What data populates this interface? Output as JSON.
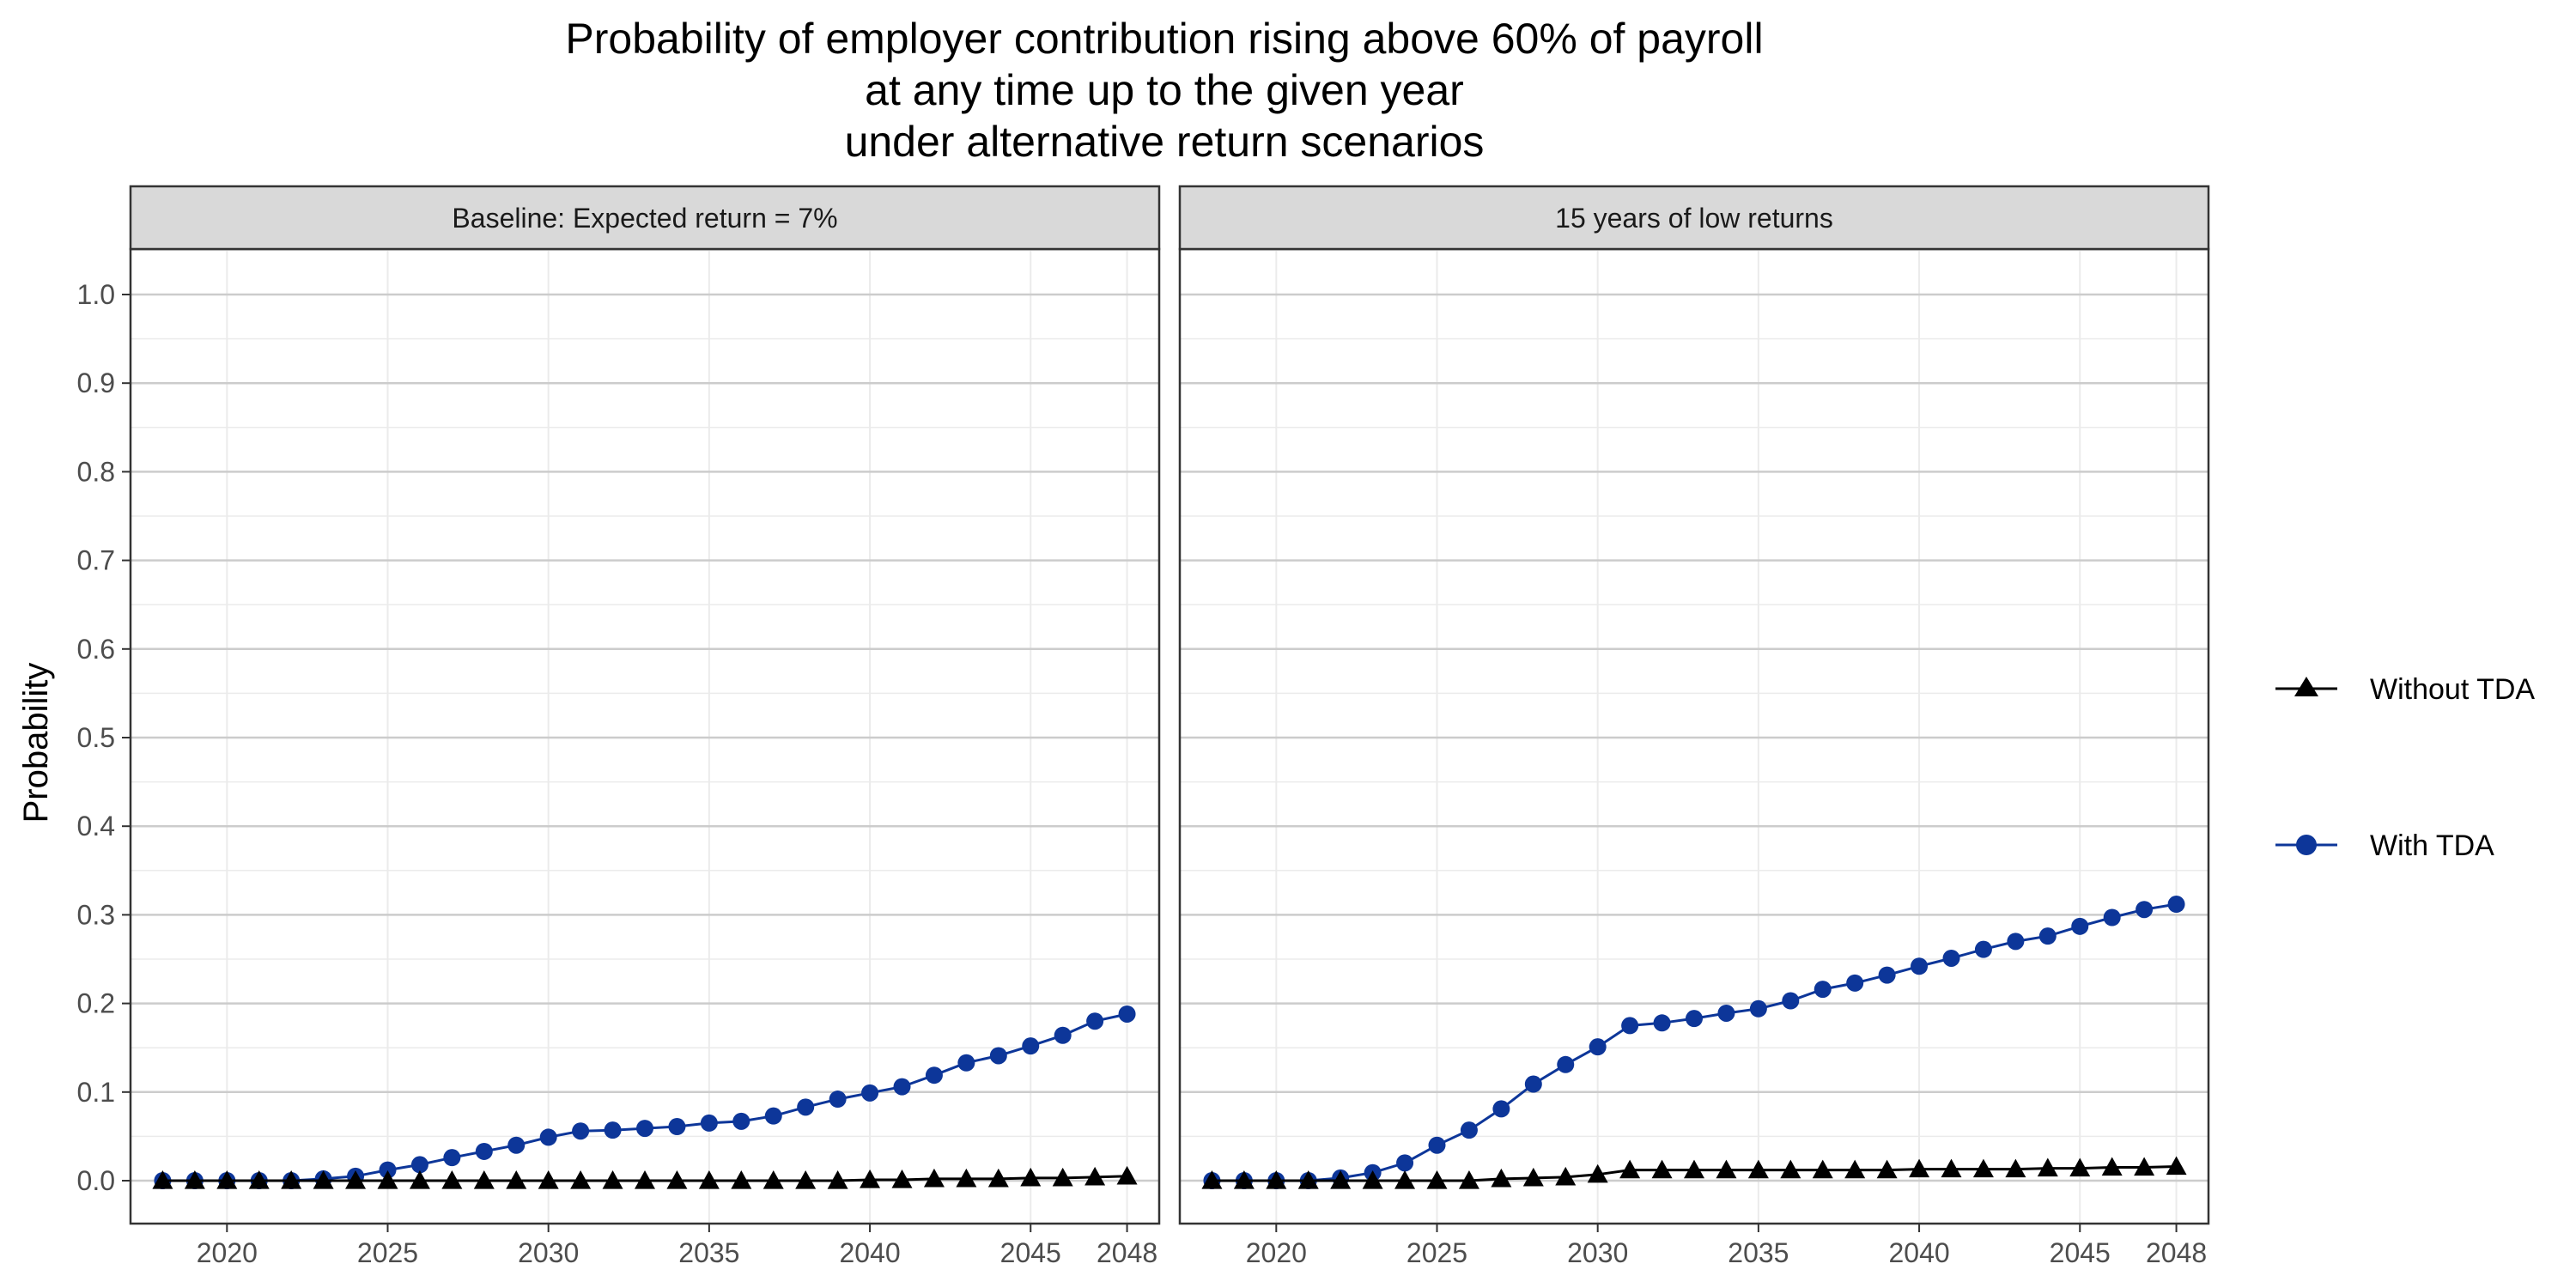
{
  "title_lines": [
    "Probability of employer contribution rising above 60% of payroll",
    "at any time up to the given year",
    "under alternative return scenarios"
  ],
  "colors": {
    "without_tda": "#000000",
    "with_tda": "#0d3699",
    "strip_fill": "#d9d9d9",
    "grid_major": "#cccccc",
    "grid_minor": "#ebebeb",
    "border": "#333333"
  },
  "chart_data": {
    "type": "line",
    "ylabel": "Probability",
    "xlabel": "",
    "xlim": [
      2017,
      2049
    ],
    "ylim": [
      -0.05,
      1.1
    ],
    "x_ticks": [
      2020,
      2025,
      2030,
      2035,
      2040,
      2045,
      2048
    ],
    "x_tick_labels": [
      "2020",
      "2025",
      "2030",
      "2035",
      "2040",
      "2045",
      "2048"
    ],
    "y_ticks": [
      0,
      0.1,
      0.2,
      0.3,
      0.4,
      0.5,
      0.6,
      0.7,
      0.8,
      0.9,
      1.0
    ],
    "y_tick_labels": [
      "0.0",
      "0.1",
      "0.2",
      "0.3",
      "0.4",
      "0.5",
      "0.6",
      "0.7",
      "0.8",
      "0.9",
      "1.0"
    ],
    "grid": true,
    "legend_position": "right",
    "legend": [
      {
        "name": "Without TDA",
        "marker": "triangle",
        "color": "#000000"
      },
      {
        "name": "With TDA",
        "marker": "circle",
        "color": "#0d3699"
      }
    ],
    "x": [
      2018,
      2019,
      2020,
      2021,
      2022,
      2023,
      2024,
      2025,
      2026,
      2027,
      2028,
      2029,
      2030,
      2031,
      2032,
      2033,
      2034,
      2035,
      2036,
      2037,
      2038,
      2039,
      2040,
      2041,
      2042,
      2043,
      2044,
      2045,
      2046,
      2047,
      2048
    ],
    "panels": [
      {
        "title": "Baseline: Expected return = 7%",
        "series": [
          {
            "name": "Without TDA",
            "values": [
              0,
              0,
              0,
              0,
              0,
              0,
              0,
              0,
              0,
              0,
              0,
              0,
              0,
              0,
              0,
              0,
              0,
              0,
              0,
              0,
              0,
              0,
              0.001,
              0.001,
              0.002,
              0.002,
              0.002,
              0.003,
              0.003,
              0.004,
              0.005
            ]
          },
          {
            "name": "With TDA",
            "values": [
              0,
              0,
              0,
              0,
              0,
              0.002,
              0.005,
              0.012,
              0.018,
              0.026,
              0.033,
              0.04,
              0.049,
              0.056,
              0.057,
              0.059,
              0.061,
              0.065,
              0.067,
              0.073,
              0.083,
              0.092,
              0.099,
              0.106,
              0.119,
              0.133,
              0.141,
              0.152,
              0.164,
              0.18,
              0.188
            ]
          }
        ]
      },
      {
        "title": "15 years of low returns",
        "series": [
          {
            "name": "Without TDA",
            "values": [
              0,
              0,
              0,
              0,
              0,
              0,
              0,
              0,
              0,
              0.002,
              0.003,
              0.004,
              0.007,
              0.012,
              0.012,
              0.012,
              0.012,
              0.012,
              0.012,
              0.012,
              0.012,
              0.012,
              0.013,
              0.013,
              0.013,
              0.013,
              0.014,
              0.014,
              0.015,
              0.015,
              0.016
            ]
          },
          {
            "name": "With TDA",
            "values": [
              0,
              0,
              0,
              0,
              0.003,
              0.009,
              0.02,
              0.04,
              0.057,
              0.081,
              0.109,
              0.131,
              0.151,
              0.175,
              0.178,
              0.183,
              0.189,
              0.194,
              0.203,
              0.216,
              0.223,
              0.232,
              0.242,
              0.251,
              0.261,
              0.27,
              0.276,
              0.287,
              0.297,
              0.306,
              0.312
            ]
          }
        ]
      }
    ]
  }
}
